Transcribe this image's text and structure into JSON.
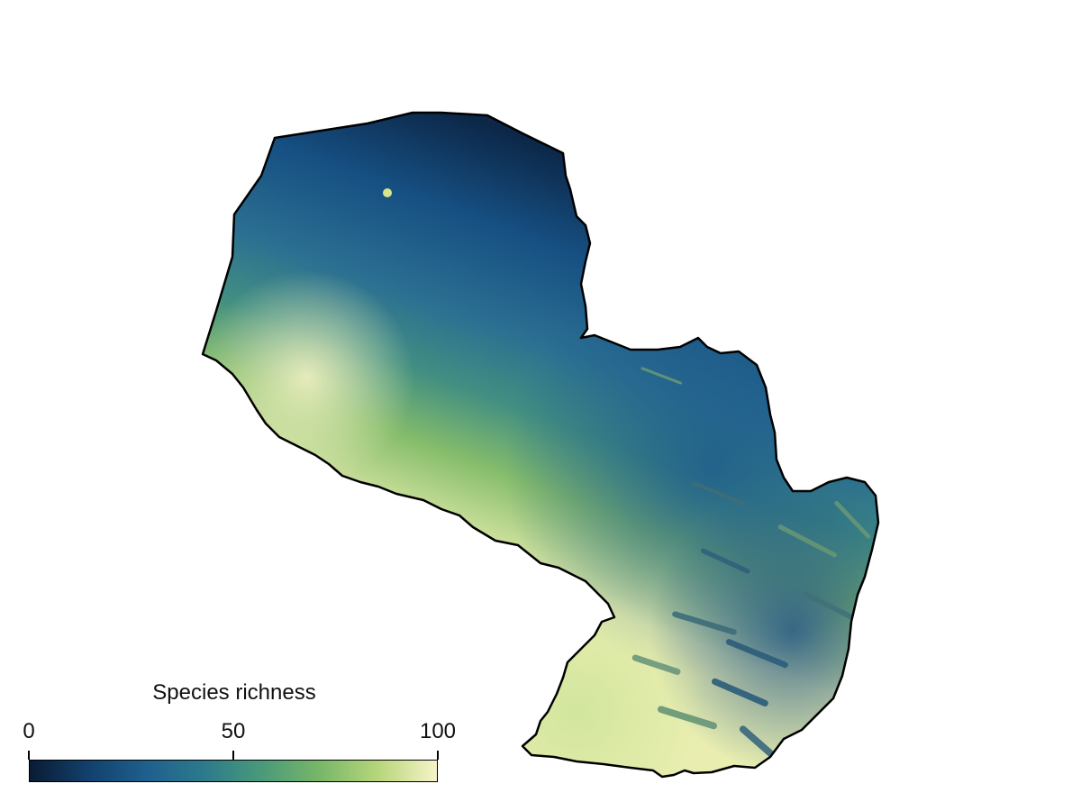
{
  "legend": {
    "title": "Species richness",
    "min": 0,
    "max": 100,
    "ticks": [
      {
        "value": 0,
        "label": "0"
      },
      {
        "value": 50,
        "label": "50"
      },
      {
        "value": 100,
        "label": "100"
      }
    ]
  },
  "colormap": [
    "#0a1b33",
    "#12406c",
    "#1f5f8e",
    "#2d7a8b",
    "#4a9a7a",
    "#79b768",
    "#b8d67c",
    "#f6f3c8"
  ],
  "outline_color": "#000000"
}
